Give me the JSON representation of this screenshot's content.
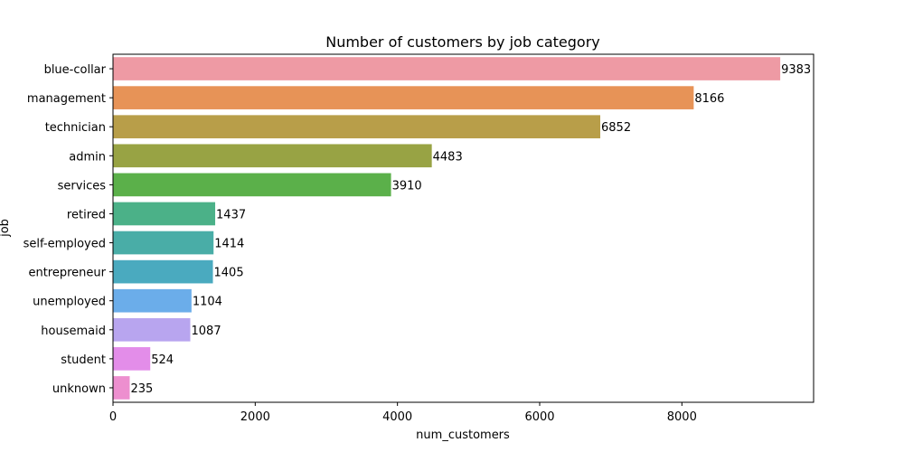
{
  "chart_data": {
    "type": "bar",
    "orientation": "horizontal",
    "title": "Number of customers by job category",
    "xlabel": "num_customers",
    "ylabel": "job",
    "xlim": [
      0,
      9852
    ],
    "xticks": [
      0,
      2000,
      4000,
      6000,
      8000
    ],
    "grid": false,
    "legend": "none",
    "categories": [
      "blue-collar",
      "management",
      "technician",
      "admin",
      "services",
      "retired",
      "self-employed",
      "entrepreneur",
      "unemployed",
      "housemaid",
      "student",
      "unknown"
    ],
    "values": [
      9383,
      8166,
      6852,
      4483,
      3910,
      1437,
      1414,
      1405,
      1104,
      1087,
      524,
      235
    ],
    "value_labels": [
      "9383",
      "8166",
      "6852",
      "4483",
      "3910",
      "1437",
      "1414",
      "1405",
      "1104",
      "1087",
      "524",
      "235"
    ],
    "colors": [
      "#ee9aa4",
      "#e79357",
      "#b89e49",
      "#98a344",
      "#5bb04a",
      "#4bb188",
      "#49ada7",
      "#4aaabf",
      "#6badea",
      "#b8a5ef",
      "#e38de9",
      "#ed8fcf"
    ]
  }
}
